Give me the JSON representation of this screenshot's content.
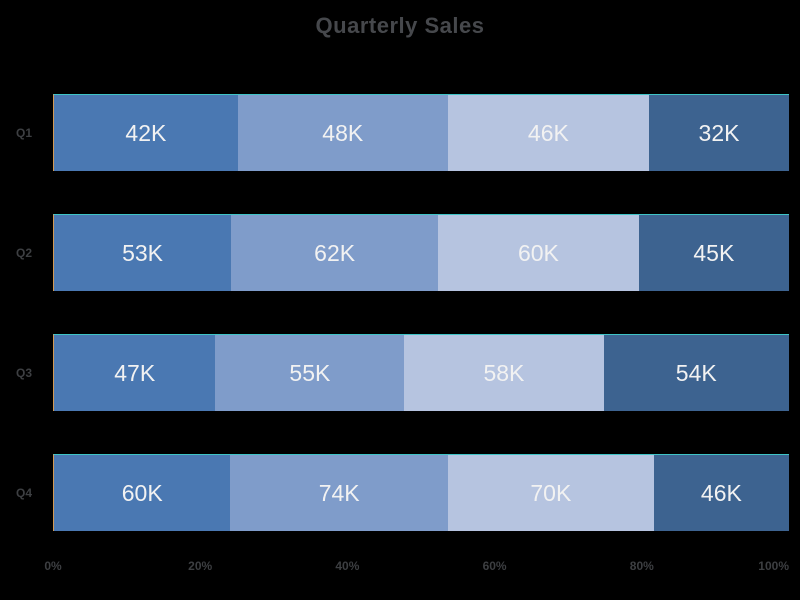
{
  "chart_data": {
    "type": "bar",
    "subtype": "horizontal-100%-stacked",
    "title": "Quarterly Sales",
    "categories": [
      "Q1",
      "Q2",
      "Q3",
      "Q4"
    ],
    "segment_colors": [
      "#4a78b2",
      "#7f9cca",
      "#b6c4e0",
      "#3d6390"
    ],
    "rows": [
      {
        "category": "Q1",
        "values": [
          42,
          48,
          46,
          32
        ],
        "labels": [
          "42K",
          "48K",
          "46K",
          "32K"
        ]
      },
      {
        "category": "Q2",
        "values": [
          53,
          62,
          60,
          45
        ],
        "labels": [
          "53K",
          "62K",
          "60K",
          "45K"
        ]
      },
      {
        "category": "Q3",
        "values": [
          47,
          55,
          58,
          54
        ],
        "labels": [
          "47K",
          "55K",
          "58K",
          "54K"
        ]
      },
      {
        "category": "Q4",
        "values": [
          60,
          74,
          70,
          46
        ],
        "labels": [
          "60K",
          "74K",
          "70K",
          "46K"
        ]
      }
    ],
    "x_ticks": [
      "0%",
      "20%",
      "40%",
      "60%",
      "80%",
      "100%"
    ],
    "xlim": [
      0,
      100
    ],
    "unit": "thousands",
    "legend": "none",
    "grid": "off"
  },
  "style": {
    "background": "#000000",
    "title_color": "#46484c",
    "axis_label_color": "#3d3f42",
    "value_label_color": "#f2f2f2",
    "bar_top_line_color": "#3ec4c6",
    "bar_left_line_color": "#d29a55"
  }
}
